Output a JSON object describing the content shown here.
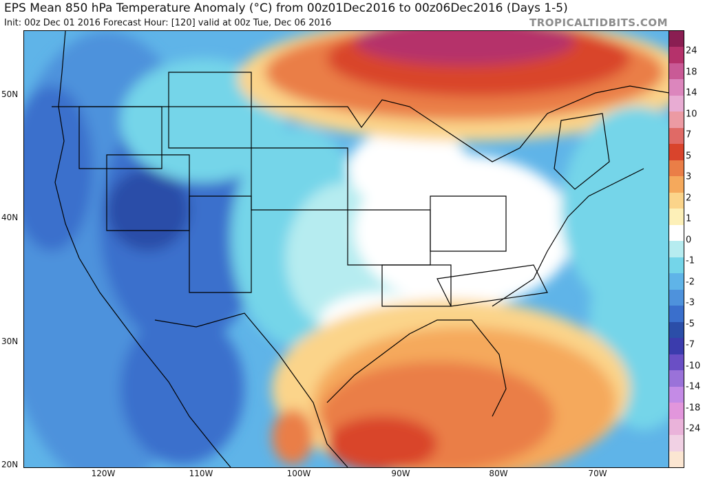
{
  "header": {
    "title": "EPS Mean 850 hPa Temperature Anomaly (°C) from 00z01Dec2016 to 00z06Dec2016 (Days 1-5)",
    "subtitle": "Init: 00z Dec 01 2016   Forecast Hour: [120]   valid at 00z Tue, Dec 06 2016",
    "brand": "TROPICALTIDBITS.COM"
  },
  "map": {
    "lat_labels": [
      "50N",
      "40N",
      "30N",
      "20N"
    ],
    "lon_labels": [
      "120W",
      "110W",
      "100W",
      "90W",
      "80W",
      "70W"
    ]
  },
  "colorbar": {
    "labels": [
      "24",
      "18",
      "14",
      "10",
      "7",
      "5",
      "3",
      "2",
      "1",
      "0",
      "-1",
      "-2",
      "-3",
      "-5",
      "-7",
      "-10",
      "-14",
      "-18",
      "-24"
    ],
    "colors": [
      "#8a1e52",
      "#b5326b",
      "#c95a96",
      "#dc86bd",
      "#e8acd3",
      "#ec9aa3",
      "#e06a66",
      "#d9442c",
      "#ea7e47",
      "#f5a95c",
      "#fbd48a",
      "#fdf0b8",
      "#ffffff",
      "#b6ecf0",
      "#74d5e9",
      "#5fb4e8",
      "#4e92dc",
      "#3a6fcc",
      "#2b4ea8",
      "#3b3cad",
      "#6a4fc5",
      "#9a72d9",
      "#c48be6",
      "#e296dc",
      "#eab3da",
      "#f1d1e4",
      "#fbe6d2"
    ]
  }
}
